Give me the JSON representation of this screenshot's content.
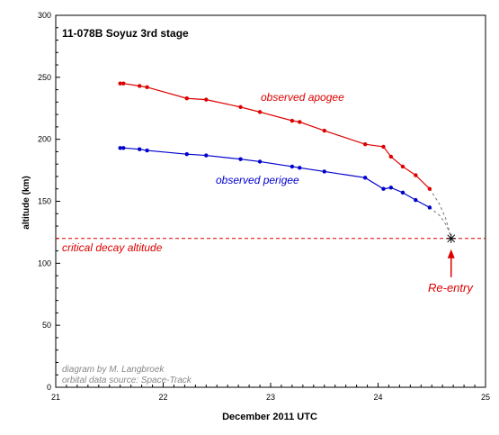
{
  "chart_data": {
    "type": "line",
    "title": "11-078B Soyuz 3rd stage",
    "xlabel": "December 2011 UTC",
    "ylabel": "altitude (km)",
    "xlim": [
      21,
      25
    ],
    "ylim": [
      0,
      300
    ],
    "xticks": [
      21,
      22,
      23,
      24,
      25
    ],
    "yticks": [
      0,
      50,
      100,
      150,
      200,
      250,
      300
    ],
    "grid": false,
    "series": [
      {
        "name": "observed apogee",
        "color": "#dd0000",
        "x": [
          21.6,
          21.63,
          21.78,
          21.85,
          22.22,
          22.4,
          22.72,
          22.9,
          23.2,
          23.27,
          23.5,
          23.88,
          24.05,
          24.12,
          24.23,
          24.35,
          24.48
        ],
        "y": [
          245,
          245,
          243,
          242,
          233,
          232,
          226,
          222,
          215,
          214,
          207,
          196,
          194,
          186,
          178,
          171,
          160
        ]
      },
      {
        "name": "observed perigee",
        "color": "#0000cc",
        "x": [
          21.6,
          21.63,
          21.78,
          21.85,
          22.22,
          22.4,
          22.72,
          22.9,
          23.2,
          23.27,
          23.5,
          23.88,
          24.05,
          24.12,
          24.23,
          24.35,
          24.48
        ],
        "y": [
          193,
          193,
          192,
          191,
          188,
          187,
          184,
          182,
          178,
          177,
          174,
          169,
          160,
          161,
          157,
          151,
          145
        ]
      }
    ],
    "extrapolation": {
      "color": "#777777",
      "apogee_x": [
        24.48,
        24.57,
        24.63,
        24.68
      ],
      "apogee_y": [
        160,
        148,
        136,
        121
      ],
      "perigee_x": [
        24.48,
        24.58,
        24.64,
        24.68
      ],
      "perigee_y": [
        145,
        138,
        130,
        121
      ]
    },
    "reentry": {
      "x": 24.68,
      "y": 120
    },
    "threshold": {
      "y": 120,
      "color": "#dd0000"
    },
    "annotations": {
      "apogee_label": "observed apogee",
      "perigee_label": "observed perigee",
      "critical_label": "critical decay altitude",
      "reentry_label": "Re-entry",
      "credit_1": "diagram by M. Langbroek",
      "credit_2": "orbital data source: Space-Track"
    }
  }
}
